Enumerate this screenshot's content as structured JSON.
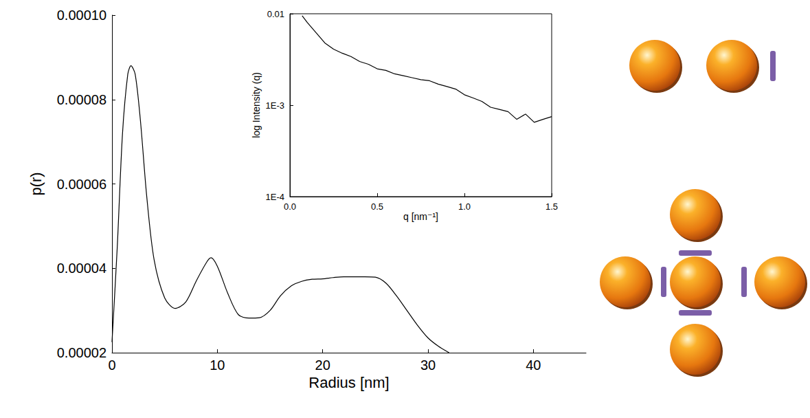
{
  "chart_data": [
    {
      "type": "line",
      "xlabel": "Radius [nm]",
      "ylabel": "p(r)",
      "color": "#000000",
      "x": [
        0,
        0.5,
        1,
        1.5,
        1.8,
        2.2,
        2.7,
        3.3,
        4,
        5,
        6,
        7,
        8,
        9,
        9.4,
        10,
        11,
        12,
        13,
        14,
        15,
        16,
        17,
        18,
        19,
        20,
        21,
        22,
        23,
        24,
        25,
        26,
        27,
        28,
        29,
        30,
        31,
        32
      ],
      "values": [
        2.25e-05,
        4.5e-05,
        7.2e-05,
        8.6e-05,
        8.8e-05,
        8.6e-05,
        7.5e-05,
        5.7e-05,
        4.2e-05,
        3.3e-05,
        3.05e-05,
        3.2e-05,
        3.7e-05,
        4.15e-05,
        4.25e-05,
        4.05e-05,
        3.4e-05,
        2.9e-05,
        2.82e-05,
        2.83e-05,
        3e-05,
        3.35e-05,
        3.58e-05,
        3.69e-05,
        3.74e-05,
        3.75e-05,
        3.78e-05,
        3.8e-05,
        3.8e-05,
        3.8e-05,
        3.79e-05,
        3.65e-05,
        3.35e-05,
        3e-05,
        2.65e-05,
        2.35e-05,
        2.15e-05,
        2e-05
      ],
      "xlim": [
        0,
        45
      ],
      "xticks": [
        0,
        10,
        20,
        30,
        40
      ],
      "ylim": [
        2e-05,
        0.0001
      ],
      "yticks": [
        2e-05,
        4e-05,
        6e-05,
        8e-05,
        {
          "value": 0.0001,
          "label": "0.00010"
        }
      ]
    },
    {
      "type": "line",
      "xlabel": "q [nm⁻¹]",
      "ylabel": "log Intensity (q)",
      "color": "#000000",
      "log": "y",
      "x": [
        0.07,
        0.1,
        0.15,
        0.2,
        0.25,
        0.3,
        0.35,
        0.4,
        0.45,
        0.5,
        0.55,
        0.6,
        0.65,
        0.7,
        0.75,
        0.8,
        0.85,
        0.9,
        0.95,
        1.0,
        1.05,
        1.1,
        1.15,
        1.2,
        1.25,
        1.3,
        1.35,
        1.4,
        1.45,
        1.5
      ],
      "values": [
        0.0095,
        0.008,
        0.0062,
        0.0048,
        0.0041,
        0.0037,
        0.0034,
        0.003,
        0.0028,
        0.0025,
        0.0024,
        0.0022,
        0.0021,
        0.002,
        0.0019,
        0.00185,
        0.0017,
        0.0016,
        0.0015,
        0.0013,
        0.0012,
        0.0011,
        0.00095,
        0.0009,
        0.00085,
        0.0007,
        0.0008,
        0.00065,
        0.0007,
        0.00075
      ],
      "xlim": [
        0,
        1.5
      ],
      "xticks": [
        {
          "value": 0,
          "label": "0.0"
        },
        0.5,
        {
          "value": 1,
          "label": "1.0"
        },
        1.5
      ],
      "ylim": [
        0.0001,
        0.01
      ],
      "yticks": [
        {
          "value": 0.0001,
          "label": "1E-4"
        },
        {
          "value": 0.001,
          "label": "1E-3"
        },
        0.01
      ]
    }
  ]
}
